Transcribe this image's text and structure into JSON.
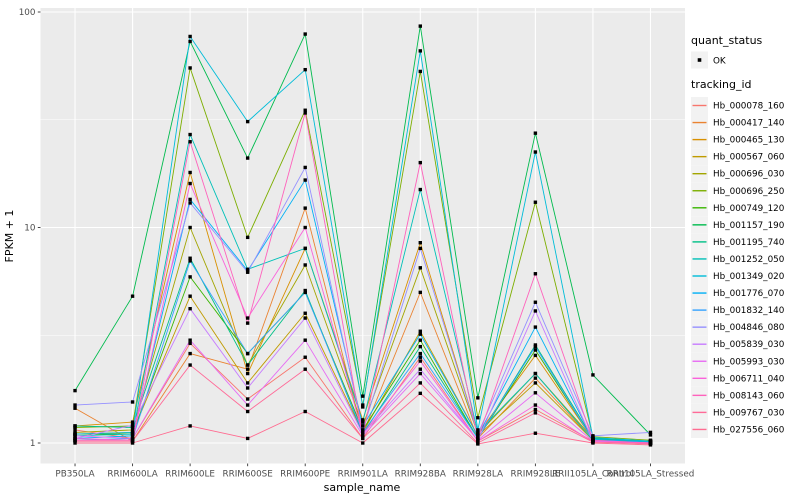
{
  "chart_data": {
    "type": "line",
    "title": "",
    "xlabel": "sample_name",
    "ylabel": "FPKM + 1",
    "y_scale": "log10",
    "y_ticks": [
      1,
      10,
      100
    ],
    "y_tick_labels": [
      "1",
      "10",
      "100"
    ],
    "y_minor_breaks": [
      3.1623,
      31.623
    ],
    "ylim": [
      0.81,
      105
    ],
    "grid": "on",
    "legend_position": "right",
    "panel_bg": "#EBEBEB",
    "grid_color": "#FFFFFF",
    "legend_key_bg": "#F2F2F2",
    "point_color": "#000000",
    "tick_text_color": "#4D4D4D",
    "categories": [
      "PB350LA",
      "RRIM600LA",
      "RRIM600LE",
      "RRIM600SE",
      "RRIM600PE",
      "RRIM901LA",
      "RRIM928BA",
      "RRIM928LA",
      "RRIM928LE",
      "RRII105LA_Control",
      "RRII105LA_Stressed"
    ],
    "series": [
      {
        "name": "Hb_000078_160",
        "color": "#F8766D",
        "values": [
          1.15,
          1.05,
          2.9,
          1.6,
          2.5,
          1.05,
          2.5,
          1.02,
          1.43,
          1.02,
          1.0
        ]
      },
      {
        "name": "Hb_000417_140",
        "color": "#EA8331",
        "values": [
          1.45,
          1.02,
          2.6,
          2.2,
          12.3,
          1.1,
          5.0,
          1.05,
          2.0,
          1.03,
          1.0
        ]
      },
      {
        "name": "Hb_000465_130",
        "color": "#D89000",
        "values": [
          1.2,
          1.25,
          18.0,
          2.1,
          8.0,
          1.28,
          8.5,
          1.1,
          2.55,
          1.04,
          1.02
        ]
      },
      {
        "name": "Hb_000567_060",
        "color": "#C09B00",
        "values": [
          1.1,
          1.12,
          4.8,
          1.9,
          4.0,
          1.12,
          3.3,
          1.08,
          1.9,
          1.03,
          1.0
        ]
      },
      {
        "name": "Hb_000696_030",
        "color": "#A3A500",
        "values": [
          1.12,
          1.15,
          10.0,
          2.3,
          6.7,
          1.2,
          6.5,
          1.1,
          2.1,
          1.05,
          1.02
        ]
      },
      {
        "name": "Hb_000696_250",
        "color": "#7CAE00",
        "values": [
          1.18,
          1.2,
          55.0,
          9.0,
          35.0,
          1.5,
          53.0,
          1.31,
          13.1,
          1.07,
          1.03
        ]
      },
      {
        "name": "Hb_000749_120",
        "color": "#39B600",
        "values": [
          1.1,
          1.1,
          5.9,
          2.6,
          5.0,
          1.15,
          3.0,
          1.05,
          2.7,
          1.04,
          1.01
        ]
      },
      {
        "name": "Hb_001157_190",
        "color": "#00BB4E",
        "values": [
          1.75,
          4.8,
          73.0,
          21.0,
          79.0,
          1.65,
          86.0,
          1.62,
          27.4,
          2.07,
          1.09
        ]
      },
      {
        "name": "Hb_001195_740",
        "color": "#00C087",
        "values": [
          1.2,
          1.18,
          7.2,
          2.3,
          5.1,
          1.1,
          2.8,
          1.05,
          2.85,
          1.05,
          1.02
        ]
      },
      {
        "name": "Hb_001252_050",
        "color": "#00C0B8",
        "values": [
          1.08,
          1.1,
          27.0,
          6.4,
          8.0,
          1.25,
          15.0,
          1.12,
          2.1,
          1.03,
          1.0
        ]
      },
      {
        "name": "Hb_001349_020",
        "color": "#00BCD8",
        "values": [
          1.1,
          1.12,
          77.0,
          31.0,
          54.0,
          1.47,
          66.0,
          1.15,
          22.4,
          1.06,
          1.02
        ]
      },
      {
        "name": "Hb_001776_070",
        "color": "#00B0F6",
        "values": [
          1.05,
          1.08,
          13.5,
          6.3,
          16.6,
          1.2,
          3.2,
          1.08,
          3.45,
          1.04,
          1.01
        ]
      },
      {
        "name": "Hb_001832_140",
        "color": "#35A2FF",
        "values": [
          1.03,
          1.05,
          7.0,
          2.6,
          5.0,
          1.12,
          2.6,
          1.05,
          2.8,
          1.03,
          1.0
        ]
      },
      {
        "name": "Hb_004846_080",
        "color": "#9590FF",
        "values": [
          1.5,
          1.55,
          13.0,
          6.2,
          19.0,
          1.15,
          8.0,
          1.1,
          4.5,
          1.08,
          1.12
        ]
      },
      {
        "name": "Hb_005839_030",
        "color": "#C77CFF",
        "values": [
          1.05,
          1.21,
          4.2,
          1.8,
          3.8,
          1.1,
          2.2,
          1.03,
          4.1,
          1.02,
          1.0
        ]
      },
      {
        "name": "Hb_005993_030",
        "color": "#E76BF3",
        "values": [
          1.08,
          1.05,
          3.0,
          1.5,
          3.0,
          1.08,
          2.1,
          1.03,
          1.71,
          1.02,
          1.0
        ]
      },
      {
        "name": "Hb_006711_040",
        "color": "#FA62DB",
        "values": [
          1.05,
          1.03,
          16.0,
          3.8,
          10.0,
          1.1,
          2.4,
          1.02,
          1.5,
          1.01,
          1.0
        ]
      },
      {
        "name": "Hb_008143_060",
        "color": "#FF62BC",
        "values": [
          1.03,
          1.03,
          25.0,
          3.6,
          34.0,
          1.08,
          20.0,
          1.05,
          6.1,
          1.03,
          1.0
        ]
      },
      {
        "name": "Hb_009767_030",
        "color": "#FF6A98",
        "values": [
          1.02,
          1.02,
          2.3,
          1.4,
          2.2,
          1.05,
          1.9,
          1.0,
          1.38,
          1.01,
          0.99
        ]
      },
      {
        "name": "Hb_027556_060",
        "color": "#FF6C91",
        "values": [
          1.0,
          1.0,
          1.2,
          1.05,
          1.4,
          1.0,
          1.7,
          0.99,
          1.11,
          1.0,
          0.98
        ]
      }
    ],
    "legends": [
      {
        "title": "quant_status",
        "entries": [
          {
            "label": "OK",
            "glyph": "point",
            "color": "#000000"
          }
        ]
      },
      {
        "title": "tracking_id",
        "entries_from": "series",
        "glyph": "line"
      }
    ]
  }
}
